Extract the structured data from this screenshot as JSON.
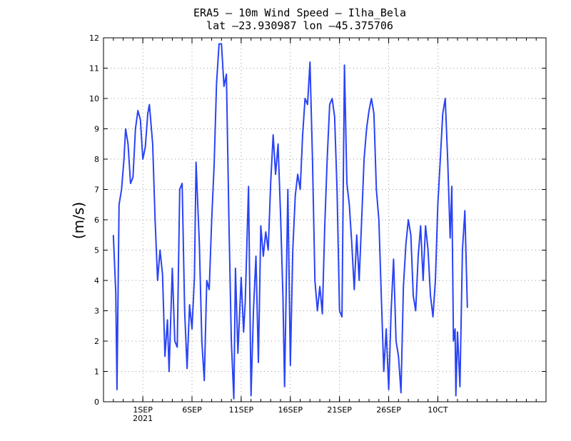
{
  "chart_data": {
    "type": "line",
    "title": "ERA5 – 10m Wind Speed – Ilha_Bela",
    "subtitle": "lat –23.930987 lon –45.375706",
    "ylabel": "(m/s)",
    "xlabel": "",
    "ylim": [
      0,
      12
    ],
    "yticks": [
      0,
      1,
      2,
      3,
      4,
      5,
      6,
      7,
      8,
      9,
      10,
      11,
      12
    ],
    "grid": true,
    "x_start_day": "2021-08-28",
    "x_end_day": "2021-10-12",
    "xticks": [
      {
        "day": "2021-09-01",
        "label": "1SEP",
        "sublabel": "2021"
      },
      {
        "day": "2021-09-06",
        "label": "6SEP",
        "sublabel": ""
      },
      {
        "day": "2021-09-11",
        "label": "11SEP",
        "sublabel": ""
      },
      {
        "day": "2021-09-16",
        "label": "16SEP",
        "sublabel": ""
      },
      {
        "day": "2021-09-21",
        "label": "21SEP",
        "sublabel": ""
      },
      {
        "day": "2021-09-26",
        "label": "26SEP",
        "sublabel": ""
      },
      {
        "day": "2021-10-01",
        "label": "10CT",
        "sublabel": ""
      }
    ],
    "series": [
      {
        "name": "",
        "color": "#2a43f5",
        "points": [
          [
            "2021-08-29 00:00",
            5.5
          ],
          [
            "2021-08-29 06:00",
            3.6
          ],
          [
            "2021-08-29 09:00",
            0.4
          ],
          [
            "2021-08-29 14:00",
            6.5
          ],
          [
            "2021-08-29 20:00",
            7.0
          ],
          [
            "2021-08-30 02:00",
            8.0
          ],
          [
            "2021-08-30 06:00",
            9.0
          ],
          [
            "2021-08-30 12:00",
            8.5
          ],
          [
            "2021-08-30 18:00",
            7.2
          ],
          [
            "2021-08-31 00:00",
            7.4
          ],
          [
            "2021-08-31 06:00",
            9.0
          ],
          [
            "2021-08-31 12:00",
            9.6
          ],
          [
            "2021-08-31 18:00",
            9.3
          ],
          [
            "2021-09-01 00:00",
            8.0
          ],
          [
            "2021-09-01 06:00",
            8.4
          ],
          [
            "2021-09-01 12:00",
            9.5
          ],
          [
            "2021-09-01 16:00",
            9.8
          ],
          [
            "2021-09-02 00:00",
            8.5
          ],
          [
            "2021-09-02 06:00",
            6.0
          ],
          [
            "2021-09-02 12:00",
            4.0
          ],
          [
            "2021-09-02 18:00",
            5.0
          ],
          [
            "2021-09-03 00:00",
            4.2
          ],
          [
            "2021-09-03 06:00",
            1.5
          ],
          [
            "2021-09-03 12:00",
            2.7
          ],
          [
            "2021-09-03 16:00",
            1.0
          ],
          [
            "2021-09-04 00:00",
            4.4
          ],
          [
            "2021-09-04 06:00",
            2.0
          ],
          [
            "2021-09-04 12:00",
            1.8
          ],
          [
            "2021-09-04 18:00",
            7.0
          ],
          [
            "2021-09-05 00:00",
            7.2
          ],
          [
            "2021-09-05 06:00",
            3.0
          ],
          [
            "2021-09-05 12:00",
            1.1
          ],
          [
            "2021-09-05 18:00",
            3.2
          ],
          [
            "2021-09-06 00:00",
            2.4
          ],
          [
            "2021-09-06 06:00",
            4.1
          ],
          [
            "2021-09-06 10:00",
            7.9
          ],
          [
            "2021-09-06 18:00",
            5.2
          ],
          [
            "2021-09-07 00:00",
            2.0
          ],
          [
            "2021-09-07 06:00",
            0.7
          ],
          [
            "2021-09-07 12:00",
            4.0
          ],
          [
            "2021-09-07 18:00",
            3.7
          ],
          [
            "2021-09-08 00:00",
            6.0
          ],
          [
            "2021-09-08 06:00",
            7.8
          ],
          [
            "2021-09-08 12:00",
            10.5
          ],
          [
            "2021-09-08 18:00",
            11.8
          ],
          [
            "2021-09-09 00:00",
            11.8
          ],
          [
            "2021-09-09 06:00",
            10.4
          ],
          [
            "2021-09-09 12:00",
            10.8
          ],
          [
            "2021-09-09 18:00",
            6.0
          ],
          [
            "2021-09-10 00:00",
            2.0
          ],
          [
            "2021-09-10 06:00",
            0.1
          ],
          [
            "2021-09-10 10:00",
            4.4
          ],
          [
            "2021-09-10 16:00",
            1.6
          ],
          [
            "2021-09-11 00:00",
            4.1
          ],
          [
            "2021-09-11 06:00",
            2.3
          ],
          [
            "2021-09-11 10:00",
            3.3
          ],
          [
            "2021-09-11 18:00",
            7.1
          ],
          [
            "2021-09-12 00:00",
            0.2
          ],
          [
            "2021-09-12 06:00",
            3.0
          ],
          [
            "2021-09-12 12:00",
            4.8
          ],
          [
            "2021-09-12 18:00",
            1.3
          ],
          [
            "2021-09-13 00:00",
            5.8
          ],
          [
            "2021-09-13 06:00",
            4.8
          ],
          [
            "2021-09-13 12:00",
            5.6
          ],
          [
            "2021-09-13 18:00",
            5.0
          ],
          [
            "2021-09-14 00:00",
            7.2
          ],
          [
            "2021-09-14 06:00",
            8.8
          ],
          [
            "2021-09-14 12:00",
            7.5
          ],
          [
            "2021-09-14 18:00",
            8.5
          ],
          [
            "2021-09-15 00:00",
            6.2
          ],
          [
            "2021-09-15 06:00",
            3.5
          ],
          [
            "2021-09-15 10:00",
            0.5
          ],
          [
            "2021-09-15 18:00",
            7.0
          ],
          [
            "2021-09-16 00:00",
            1.2
          ],
          [
            "2021-09-16 06:00",
            5.0
          ],
          [
            "2021-09-16 12:00",
            6.8
          ],
          [
            "2021-09-16 18:00",
            7.5
          ],
          [
            "2021-09-17 00:00",
            7.0
          ],
          [
            "2021-09-17 06:00",
            8.8
          ],
          [
            "2021-09-17 12:00",
            10.0
          ],
          [
            "2021-09-17 18:00",
            9.8
          ],
          [
            "2021-09-18 00:00",
            11.2
          ],
          [
            "2021-09-18 06:00",
            8.0
          ],
          [
            "2021-09-18 12:00",
            4.0
          ],
          [
            "2021-09-18 18:00",
            3.0
          ],
          [
            "2021-09-19 00:00",
            3.8
          ],
          [
            "2021-09-19 06:00",
            2.9
          ],
          [
            "2021-09-19 12:00",
            5.8
          ],
          [
            "2021-09-19 18:00",
            8.0
          ],
          [
            "2021-09-20 00:00",
            9.8
          ],
          [
            "2021-09-20 06:00",
            10.0
          ],
          [
            "2021-09-20 12:00",
            9.4
          ],
          [
            "2021-09-20 18:00",
            7.0
          ],
          [
            "2021-09-21 00:00",
            3.0
          ],
          [
            "2021-09-21 06:00",
            2.8
          ],
          [
            "2021-09-21 12:00",
            11.1
          ],
          [
            "2021-09-21 18:00",
            7.2
          ],
          [
            "2021-09-22 00:00",
            6.5
          ],
          [
            "2021-09-22 06:00",
            5.2
          ],
          [
            "2021-09-22 12:00",
            3.7
          ],
          [
            "2021-09-22 18:00",
            5.5
          ],
          [
            "2021-09-23 00:00",
            4.0
          ],
          [
            "2021-09-23 06:00",
            6.0
          ],
          [
            "2021-09-23 12:00",
            8.0
          ],
          [
            "2021-09-23 18:00",
            9.0
          ],
          [
            "2021-09-24 00:00",
            9.6
          ],
          [
            "2021-09-24 06:00",
            10.0
          ],
          [
            "2021-09-24 12:00",
            9.5
          ],
          [
            "2021-09-24 18:00",
            7.0
          ],
          [
            "2021-09-25 00:00",
            6.0
          ],
          [
            "2021-09-25 06:00",
            3.5
          ],
          [
            "2021-09-25 12:00",
            1.0
          ],
          [
            "2021-09-25 18:00",
            2.4
          ],
          [
            "2021-09-26 00:00",
            0.4
          ],
          [
            "2021-09-26 06:00",
            3.0
          ],
          [
            "2021-09-26 12:00",
            4.7
          ],
          [
            "2021-09-26 18:00",
            2.0
          ],
          [
            "2021-09-27 00:00",
            1.5
          ],
          [
            "2021-09-27 06:00",
            0.3
          ],
          [
            "2021-09-27 12:00",
            3.8
          ],
          [
            "2021-09-27 18:00",
            5.2
          ],
          [
            "2021-09-28 00:00",
            6.0
          ],
          [
            "2021-09-28 06:00",
            5.5
          ],
          [
            "2021-09-28 12:00",
            3.5
          ],
          [
            "2021-09-28 18:00",
            3.0
          ],
          [
            "2021-09-29 00:00",
            4.8
          ],
          [
            "2021-09-29 06:00",
            5.8
          ],
          [
            "2021-09-29 12:00",
            4.0
          ],
          [
            "2021-09-29 18:00",
            5.8
          ],
          [
            "2021-09-30 00:00",
            5.0
          ],
          [
            "2021-09-30 06:00",
            3.5
          ],
          [
            "2021-09-30 12:00",
            2.8
          ],
          [
            "2021-09-30 18:00",
            4.0
          ],
          [
            "2021-10-01 00:00",
            6.5
          ],
          [
            "2021-10-01 06:00",
            8.0
          ],
          [
            "2021-10-01 12:00",
            9.5
          ],
          [
            "2021-10-01 18:00",
            10.0
          ],
          [
            "2021-10-02 00:00",
            8.0
          ],
          [
            "2021-10-02 06:00",
            5.4
          ],
          [
            "2021-10-02 10:00",
            7.1
          ],
          [
            "2021-10-02 14:00",
            2.0
          ],
          [
            "2021-10-02 18:00",
            2.4
          ],
          [
            "2021-10-02 20:00",
            0.2
          ],
          [
            "2021-10-03 00:00",
            2.3
          ],
          [
            "2021-10-03 06:00",
            0.5
          ],
          [
            "2021-10-03 12:00",
            5.0
          ],
          [
            "2021-10-03 18:00",
            6.3
          ],
          [
            "2021-10-04 00:00",
            3.1
          ]
        ]
      }
    ]
  }
}
